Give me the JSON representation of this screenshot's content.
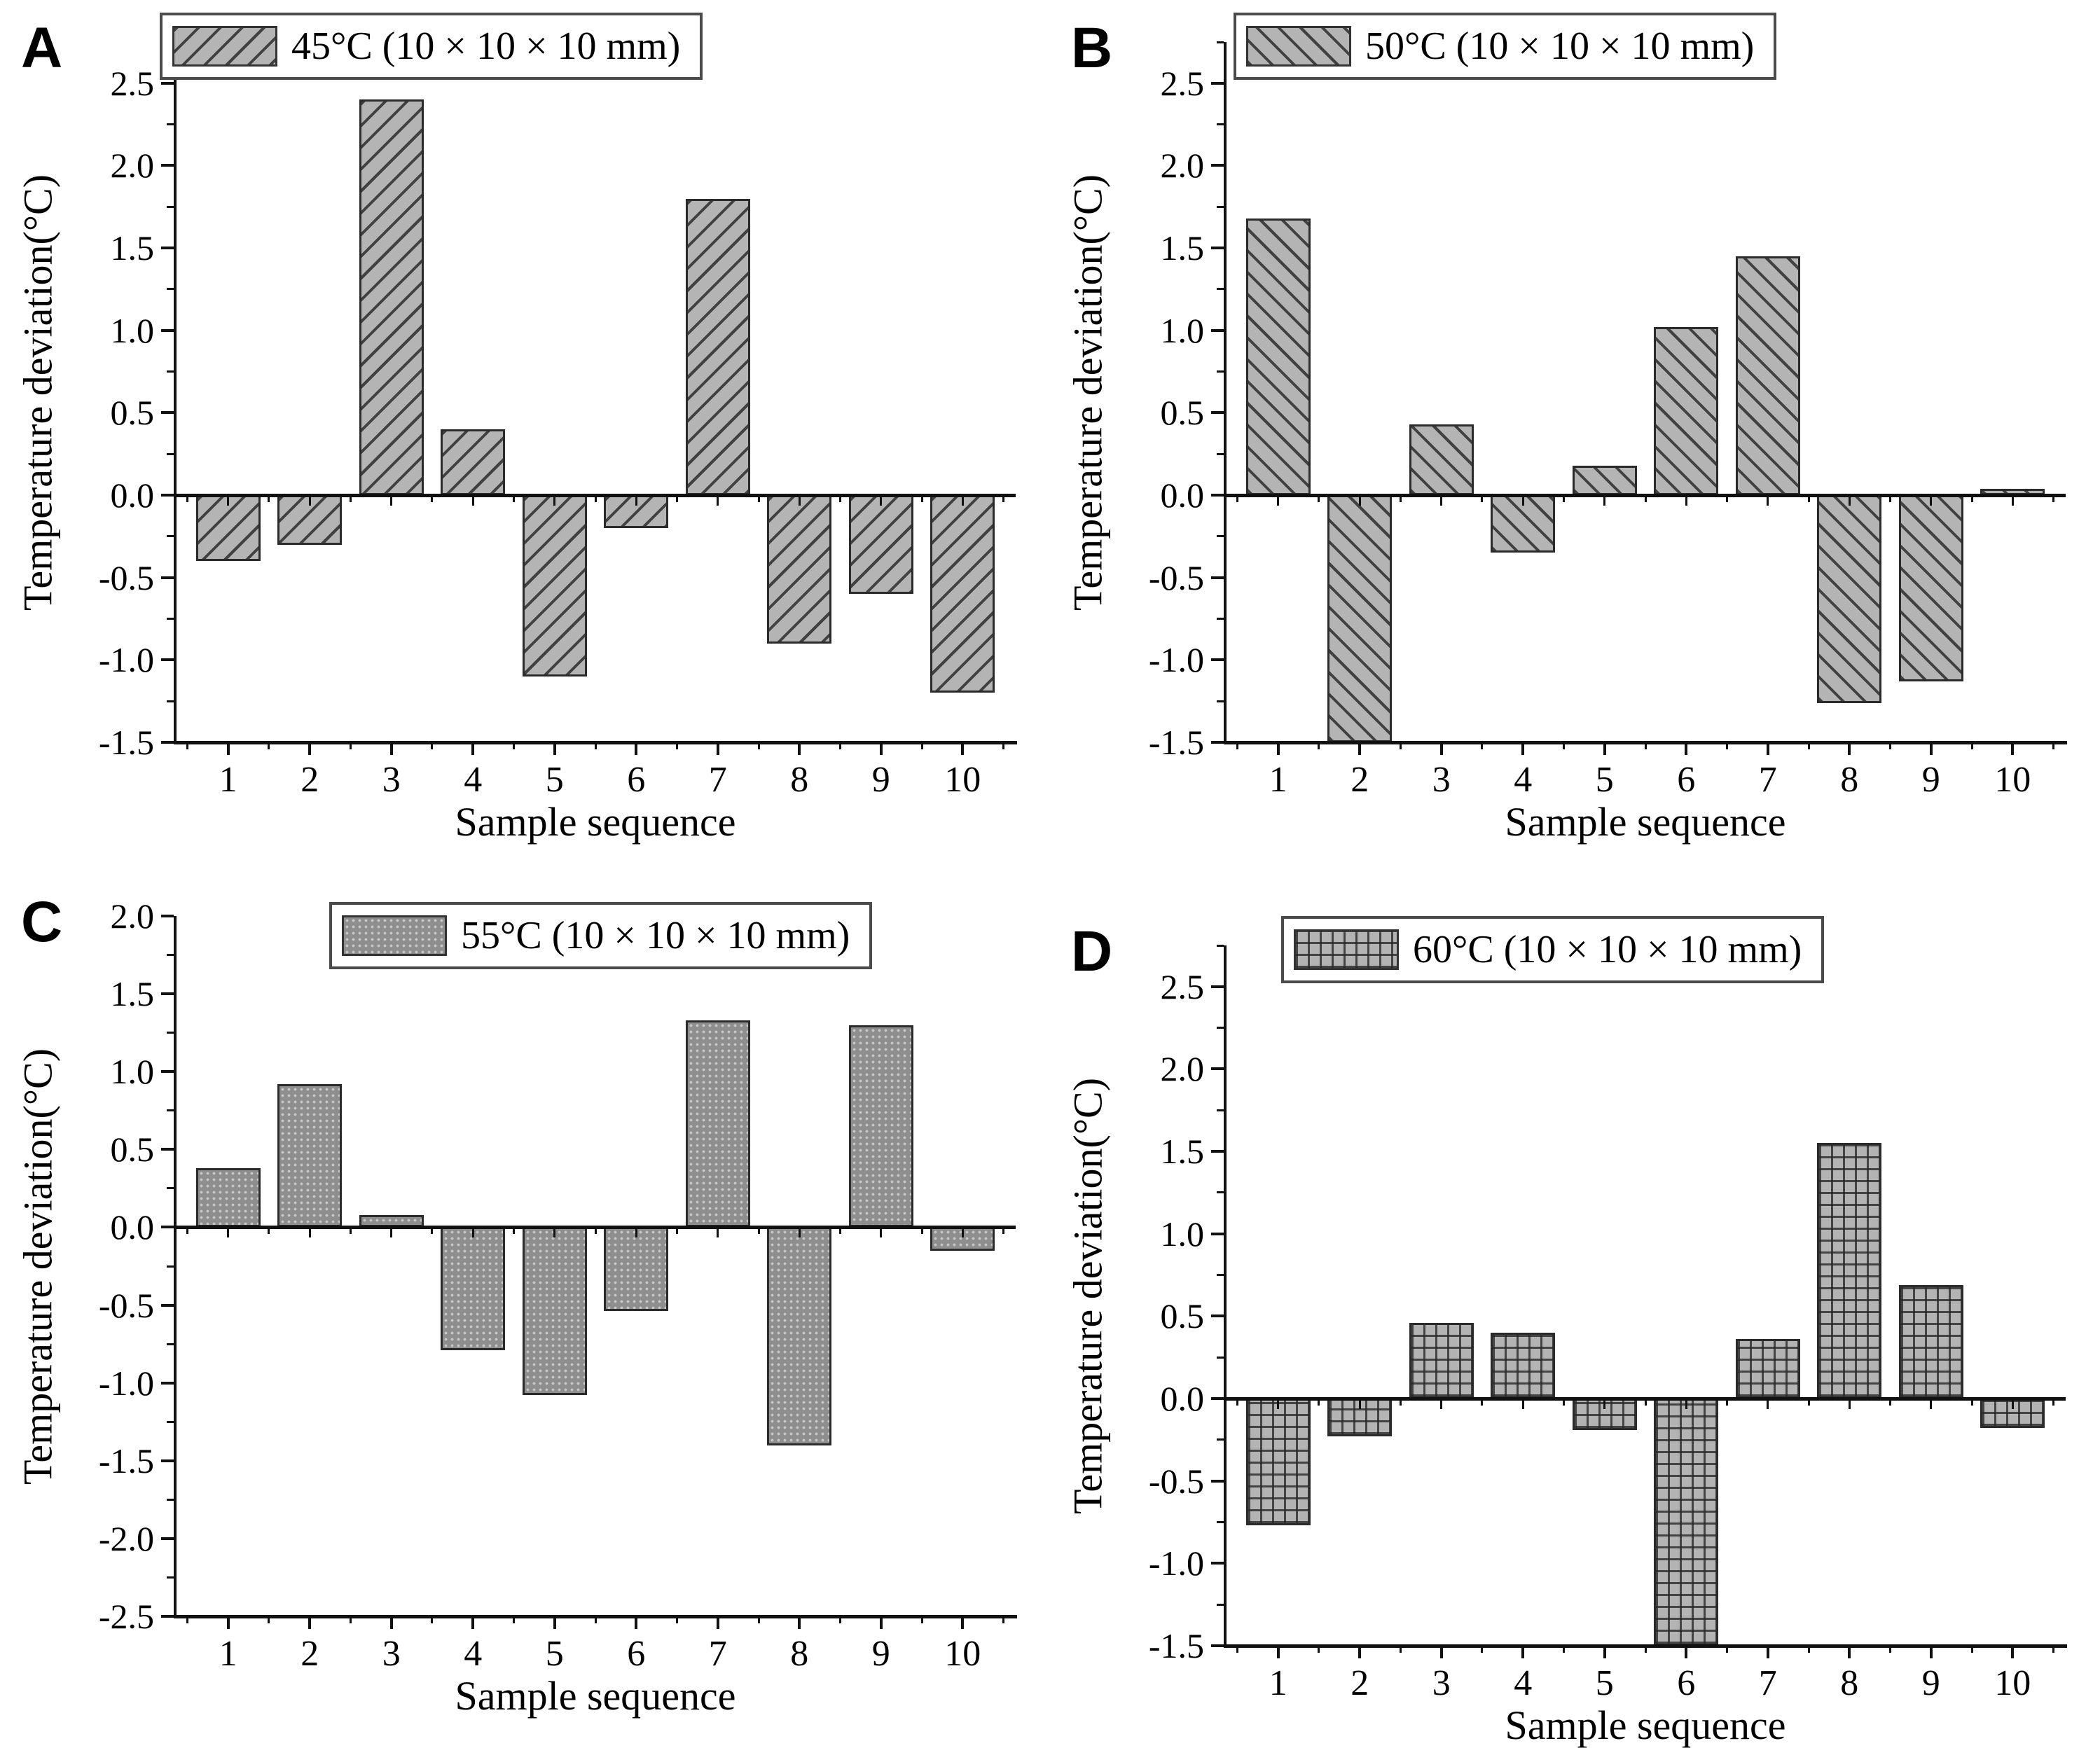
{
  "figure_kind": "four-panel bar chart figure",
  "colors": {
    "background": "#ffffff",
    "bar_fill_hatched": "#b4b4b4",
    "bar_fill_stipple": "#8e8e8e",
    "hatch_line": "#2d2d2d",
    "axis_and_text": "#111111"
  },
  "chart_data": [
    {
      "type": "bar",
      "panel": "A",
      "legend": "45°C (10 × 10 × 10 mm)",
      "legend_position": "top-left inside",
      "hatch": "diagonal-forward",
      "categories": [
        "1",
        "2",
        "3",
        "4",
        "5",
        "6",
        "7",
        "8",
        "9",
        "10"
      ],
      "values": [
        -0.4,
        -0.3,
        2.4,
        0.4,
        -1.1,
        -0.2,
        1.8,
        -0.9,
        -0.6,
        -1.2
      ],
      "xlabel": "Sample sequence",
      "ylabel": "Temperature deviation(°C)",
      "ylim": [
        -1.5,
        2.75
      ],
      "yticks": [
        2.5,
        2.0,
        1.5,
        1.0,
        0.5,
        0.0,
        -0.5,
        -1.0,
        -1.5
      ],
      "ytick_labels": [
        "2.5",
        "2.0",
        "1.5",
        "1.0",
        "0.5",
        "0.0",
        "-0.5",
        "-1.0",
        "-1.5"
      ],
      "grid": "off"
    },
    {
      "type": "bar",
      "panel": "B",
      "legend": "50°C (10 × 10 × 10 mm)",
      "legend_position": "top-left inside",
      "hatch": "diagonal-back",
      "categories": [
        "1",
        "2",
        "3",
        "4",
        "5",
        "6",
        "7",
        "8",
        "9",
        "10"
      ],
      "values": [
        1.68,
        -1.5,
        0.43,
        -0.35,
        0.18,
        1.02,
        1.45,
        -1.26,
        -1.13,
        0.04
      ],
      "clipped_bar_category": "2",
      "xlabel": "Sample sequence",
      "ylabel": "Temperature deviation(°C)",
      "ylim": [
        -1.5,
        2.75
      ],
      "yticks": [
        2.5,
        2.0,
        1.5,
        1.0,
        0.5,
        0.0,
        -0.5,
        -1.0,
        -1.5
      ],
      "ytick_labels": [
        "2.5",
        "2.0",
        "1.5",
        "1.0",
        "0.5",
        "0.0",
        "-0.5",
        "-1.0",
        "-1.5"
      ],
      "grid": "off"
    },
    {
      "type": "bar",
      "panel": "C",
      "legend": "55°C (10 × 10 × 10 mm)",
      "legend_position": "top-left inside",
      "hatch": "dots",
      "categories": [
        "1",
        "2",
        "3",
        "4",
        "5",
        "6",
        "7",
        "8",
        "9",
        "10"
      ],
      "values": [
        0.38,
        0.92,
        0.08,
        -0.79,
        -1.08,
        -0.54,
        1.33,
        -1.4,
        1.3,
        -0.15
      ],
      "xlabel": "Sample sequence",
      "ylabel": "Temperature deviation(°C)",
      "ylim": [
        -2.5,
        2.0
      ],
      "yticks": [
        2.0,
        1.5,
        1.0,
        0.5,
        0.0,
        -0.5,
        -1.0,
        -1.5,
        -2.0,
        -2.5
      ],
      "ytick_labels": [
        "2.0",
        "1.5",
        "1.0",
        "0.5",
        "0.0",
        "-0.5",
        "-1.0",
        "-1.5",
        "-2.0",
        "-2.5"
      ],
      "grid": "off"
    },
    {
      "type": "bar",
      "panel": "D",
      "legend": "60°C (10 × 10 × 10 mm)",
      "legend_position": "top-left inside",
      "hatch": "grid",
      "categories": [
        "1",
        "2",
        "3",
        "4",
        "5",
        "6",
        "7",
        "8",
        "9",
        "10"
      ],
      "values": [
        -0.77,
        -0.23,
        0.46,
        0.4,
        -0.19,
        -1.5,
        0.36,
        1.55,
        0.69,
        -0.18
      ],
      "clipped_bar_category": "6",
      "xlabel": "Sample sequence",
      "ylabel": "Temperature deviation(°C)",
      "ylim": [
        -1.5,
        2.75
      ],
      "yticks": [
        2.5,
        2.0,
        1.5,
        1.0,
        0.5,
        0.0,
        -0.5,
        -1.0,
        -1.5
      ],
      "ytick_labels": [
        "2.5",
        "2.0",
        "1.5",
        "1.0",
        "0.5",
        "0.0",
        "-0.5",
        "-1.0",
        "-1.5"
      ],
      "grid": "off"
    }
  ]
}
